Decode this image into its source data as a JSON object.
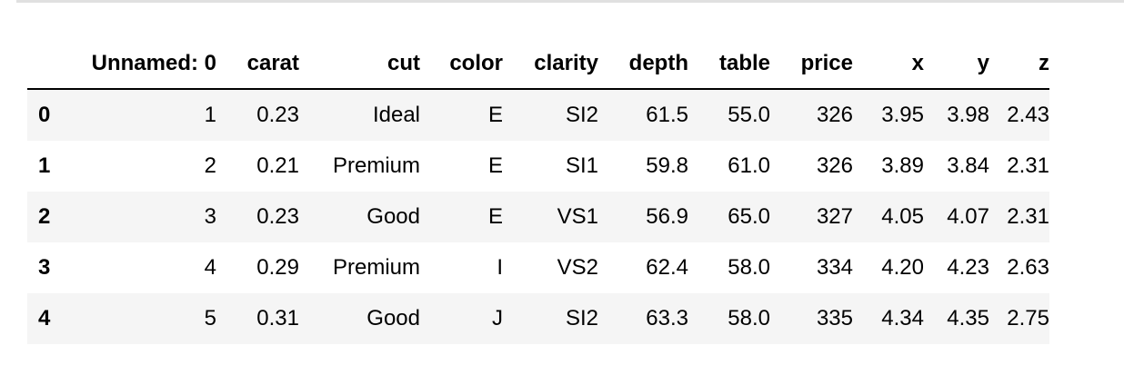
{
  "dataframe": {
    "columns": [
      "Unnamed: 0",
      "carat",
      "cut",
      "color",
      "clarity",
      "depth",
      "table",
      "price",
      "x",
      "y",
      "z"
    ],
    "rows": [
      {
        "index": "0",
        "cells": [
          "1",
          "0.23",
          "Ideal",
          "E",
          "SI2",
          "61.5",
          "55.0",
          "326",
          "3.95",
          "3.98",
          "2.43"
        ]
      },
      {
        "index": "1",
        "cells": [
          "2",
          "0.21",
          "Premium",
          "E",
          "SI1",
          "59.8",
          "61.0",
          "326",
          "3.89",
          "3.84",
          "2.31"
        ]
      },
      {
        "index": "2",
        "cells": [
          "3",
          "0.23",
          "Good",
          "E",
          "VS1",
          "56.9",
          "65.0",
          "327",
          "4.05",
          "4.07",
          "2.31"
        ]
      },
      {
        "index": "3",
        "cells": [
          "4",
          "0.29",
          "Premium",
          "I",
          "VS2",
          "62.4",
          "58.0",
          "334",
          "4.20",
          "4.23",
          "2.63"
        ]
      },
      {
        "index": "4",
        "cells": [
          "5",
          "0.31",
          "Good",
          "J",
          "SI2",
          "63.3",
          "58.0",
          "335",
          "4.34",
          "4.35",
          "2.75"
        ]
      }
    ]
  }
}
